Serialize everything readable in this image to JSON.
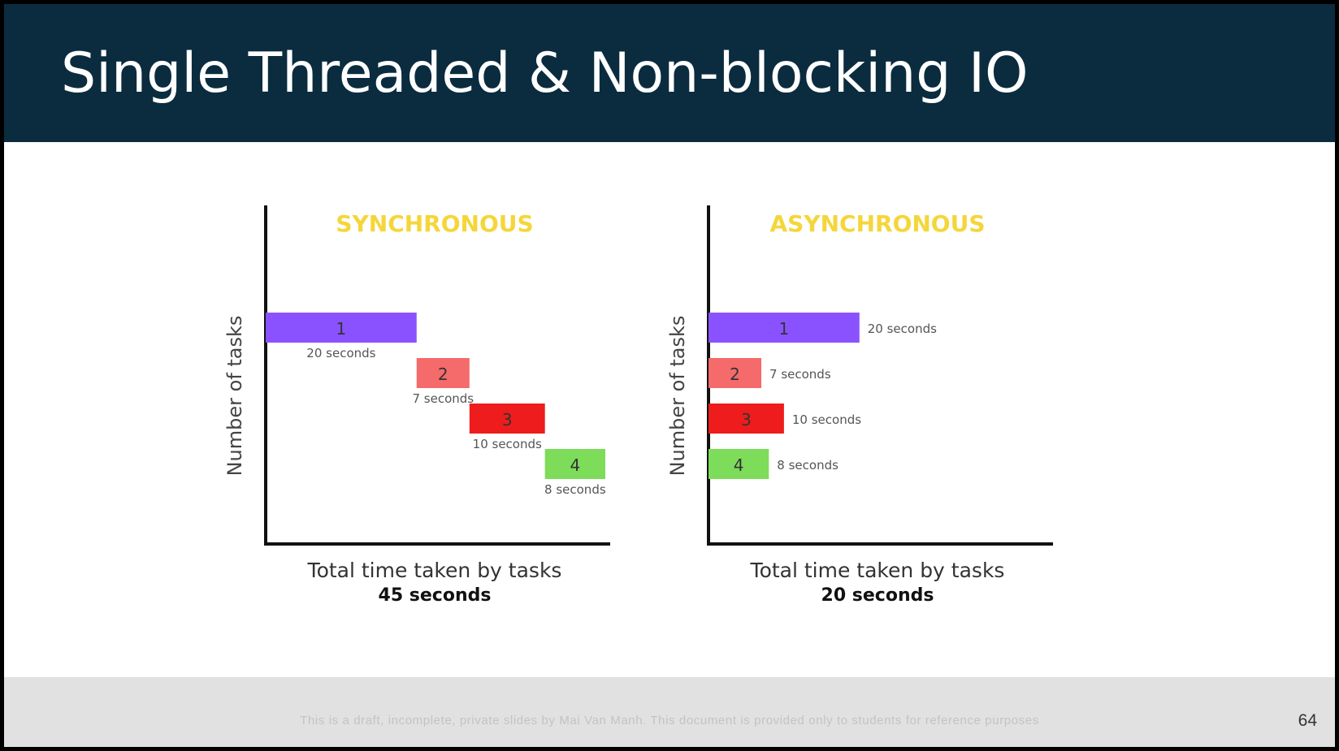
{
  "slide": {
    "title": "Single Threaded & Non-blocking IO",
    "footer_note": "This is a draft, incomplete, private slides by Mai Van Manh. This document is provided only to students for reference purposes",
    "page_number": "64",
    "header_color": "#0b2c3f"
  },
  "chart_data": [
    {
      "type": "bar",
      "orientation": "horizontal-timeline",
      "title": "SYNCHRONOUS",
      "title_color": "#f5d63a",
      "ylabel": "Number of tasks",
      "xlabel": "Total time taken by tasks",
      "total_label": "45 seconds",
      "xlim": [
        0,
        45
      ],
      "grid": false,
      "label_position": "below",
      "tasks": [
        {
          "label": "1",
          "start": 0,
          "duration": 20,
          "duration_label": "20 seconds",
          "color": "#8a52ff"
        },
        {
          "label": "2",
          "start": 20,
          "duration": 7,
          "duration_label": "7 seconds",
          "color": "#f56a6a"
        },
        {
          "label": "3",
          "start": 27,
          "duration": 10,
          "duration_label": "10 seconds",
          "color": "#ee1c1c"
        },
        {
          "label": "4",
          "start": 37,
          "duration": 8,
          "duration_label": "8 seconds",
          "color": "#7ddc5a"
        }
      ]
    },
    {
      "type": "bar",
      "orientation": "horizontal-timeline",
      "title": "ASYNCHRONOUS",
      "title_color": "#f5d63a",
      "ylabel": "Number of tasks",
      "xlabel": "Total time taken by tasks",
      "total_label": "20 seconds",
      "xlim": [
        0,
        45
      ],
      "grid": false,
      "label_position": "right",
      "tasks": [
        {
          "label": "1",
          "start": 0,
          "duration": 20,
          "duration_label": "20 seconds",
          "color": "#8a52ff"
        },
        {
          "label": "2",
          "start": 0,
          "duration": 7,
          "duration_label": "7 seconds",
          "color": "#f56a6a"
        },
        {
          "label": "3",
          "start": 0,
          "duration": 10,
          "duration_label": "10 seconds",
          "color": "#ee1c1c"
        },
        {
          "label": "4",
          "start": 0,
          "duration": 8,
          "duration_label": "8 seconds",
          "color": "#7ddc5a"
        }
      ]
    }
  ]
}
